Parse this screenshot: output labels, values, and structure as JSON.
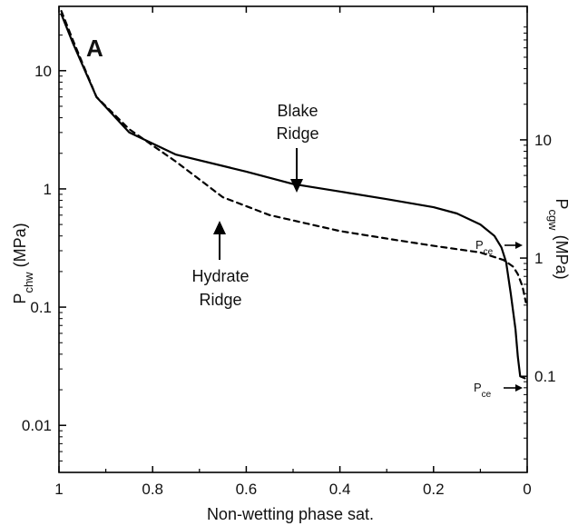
{
  "chart_data": {
    "type": "line",
    "panel_label": "A",
    "xlabel": "Non-wetting phase sat.",
    "xlim": [
      1,
      0
    ],
    "x_ticks": [
      {
        "value": 1,
        "label": "1"
      },
      {
        "value": 0.8,
        "label": "0.8"
      },
      {
        "value": 0.6,
        "label": "0.6"
      },
      {
        "value": 0.4,
        "label": "0.4"
      },
      {
        "value": 0.2,
        "label": "0.2"
      },
      {
        "value": 0,
        "label": "0"
      }
    ],
    "ylabel_left": {
      "base": "P",
      "sub": "chw",
      "unit": " (MPa)"
    },
    "ylabel_right": {
      "base": "P",
      "sub": "cgw",
      "unit": " (MPa)"
    },
    "y_scale": "log",
    "ylim_left": [
      0.004,
      35
    ],
    "y_ticks_left": [
      {
        "value": 10,
        "label": "10"
      },
      {
        "value": 1,
        "label": "1"
      },
      {
        "value": 0.1,
        "label": "0.1"
      },
      {
        "value": 0.01,
        "label": "0.01"
      }
    ],
    "y_ticks_right": [
      {
        "value": 10,
        "label": "10"
      },
      {
        "value": 1,
        "label": "1"
      },
      {
        "value": 0.1,
        "label": "0.1"
      }
    ],
    "series": [
      {
        "name": "Blake Ridge",
        "style": "solid",
        "color": "#000000",
        "points": [
          [
            0.995,
            30
          ],
          [
            0.97,
            17
          ],
          [
            0.92,
            6
          ],
          [
            0.85,
            3
          ],
          [
            0.75,
            1.95
          ],
          [
            0.6,
            1.4
          ],
          [
            0.5,
            1.1
          ],
          [
            0.4,
            0.95
          ],
          [
            0.3,
            0.82
          ],
          [
            0.2,
            0.7
          ],
          [
            0.15,
            0.62
          ],
          [
            0.1,
            0.5
          ],
          [
            0.07,
            0.4
          ],
          [
            0.055,
            0.32
          ],
          [
            0.045,
            0.24
          ],
          [
            0.035,
            0.13
          ],
          [
            0.025,
            0.065
          ],
          [
            0.02,
            0.038
          ],
          [
            0.015,
            0.026
          ],
          [
            0.005,
            0.025
          ]
        ]
      },
      {
        "name": "Hydrate Ridge",
        "style": "dashed",
        "color": "#000000",
        "points": [
          [
            0.995,
            32
          ],
          [
            0.97,
            18
          ],
          [
            0.92,
            6
          ],
          [
            0.85,
            3.2
          ],
          [
            0.75,
            1.7
          ],
          [
            0.65,
            0.85
          ],
          [
            0.55,
            0.6
          ],
          [
            0.4,
            0.44
          ],
          [
            0.3,
            0.38
          ],
          [
            0.2,
            0.33
          ],
          [
            0.1,
            0.29
          ],
          [
            0.05,
            0.25
          ],
          [
            0.03,
            0.22
          ],
          [
            0.02,
            0.19
          ],
          [
            0.01,
            0.15
          ],
          [
            0.003,
            0.11
          ]
        ]
      }
    ],
    "annotations": [
      {
        "text_lines": [
          "Blake",
          "Ridge"
        ],
        "series": "Blake Ridge"
      },
      {
        "text_lines": [
          "Hydrate",
          "Ridge"
        ],
        "series": "Hydrate Ridge"
      },
      {
        "label": {
          "base": "P",
          "sub": "ce"
        },
        "value": 0.085
      },
      {
        "label": {
          "base": "P",
          "sub": "ce"
        },
        "value": 0.025
      }
    ]
  }
}
